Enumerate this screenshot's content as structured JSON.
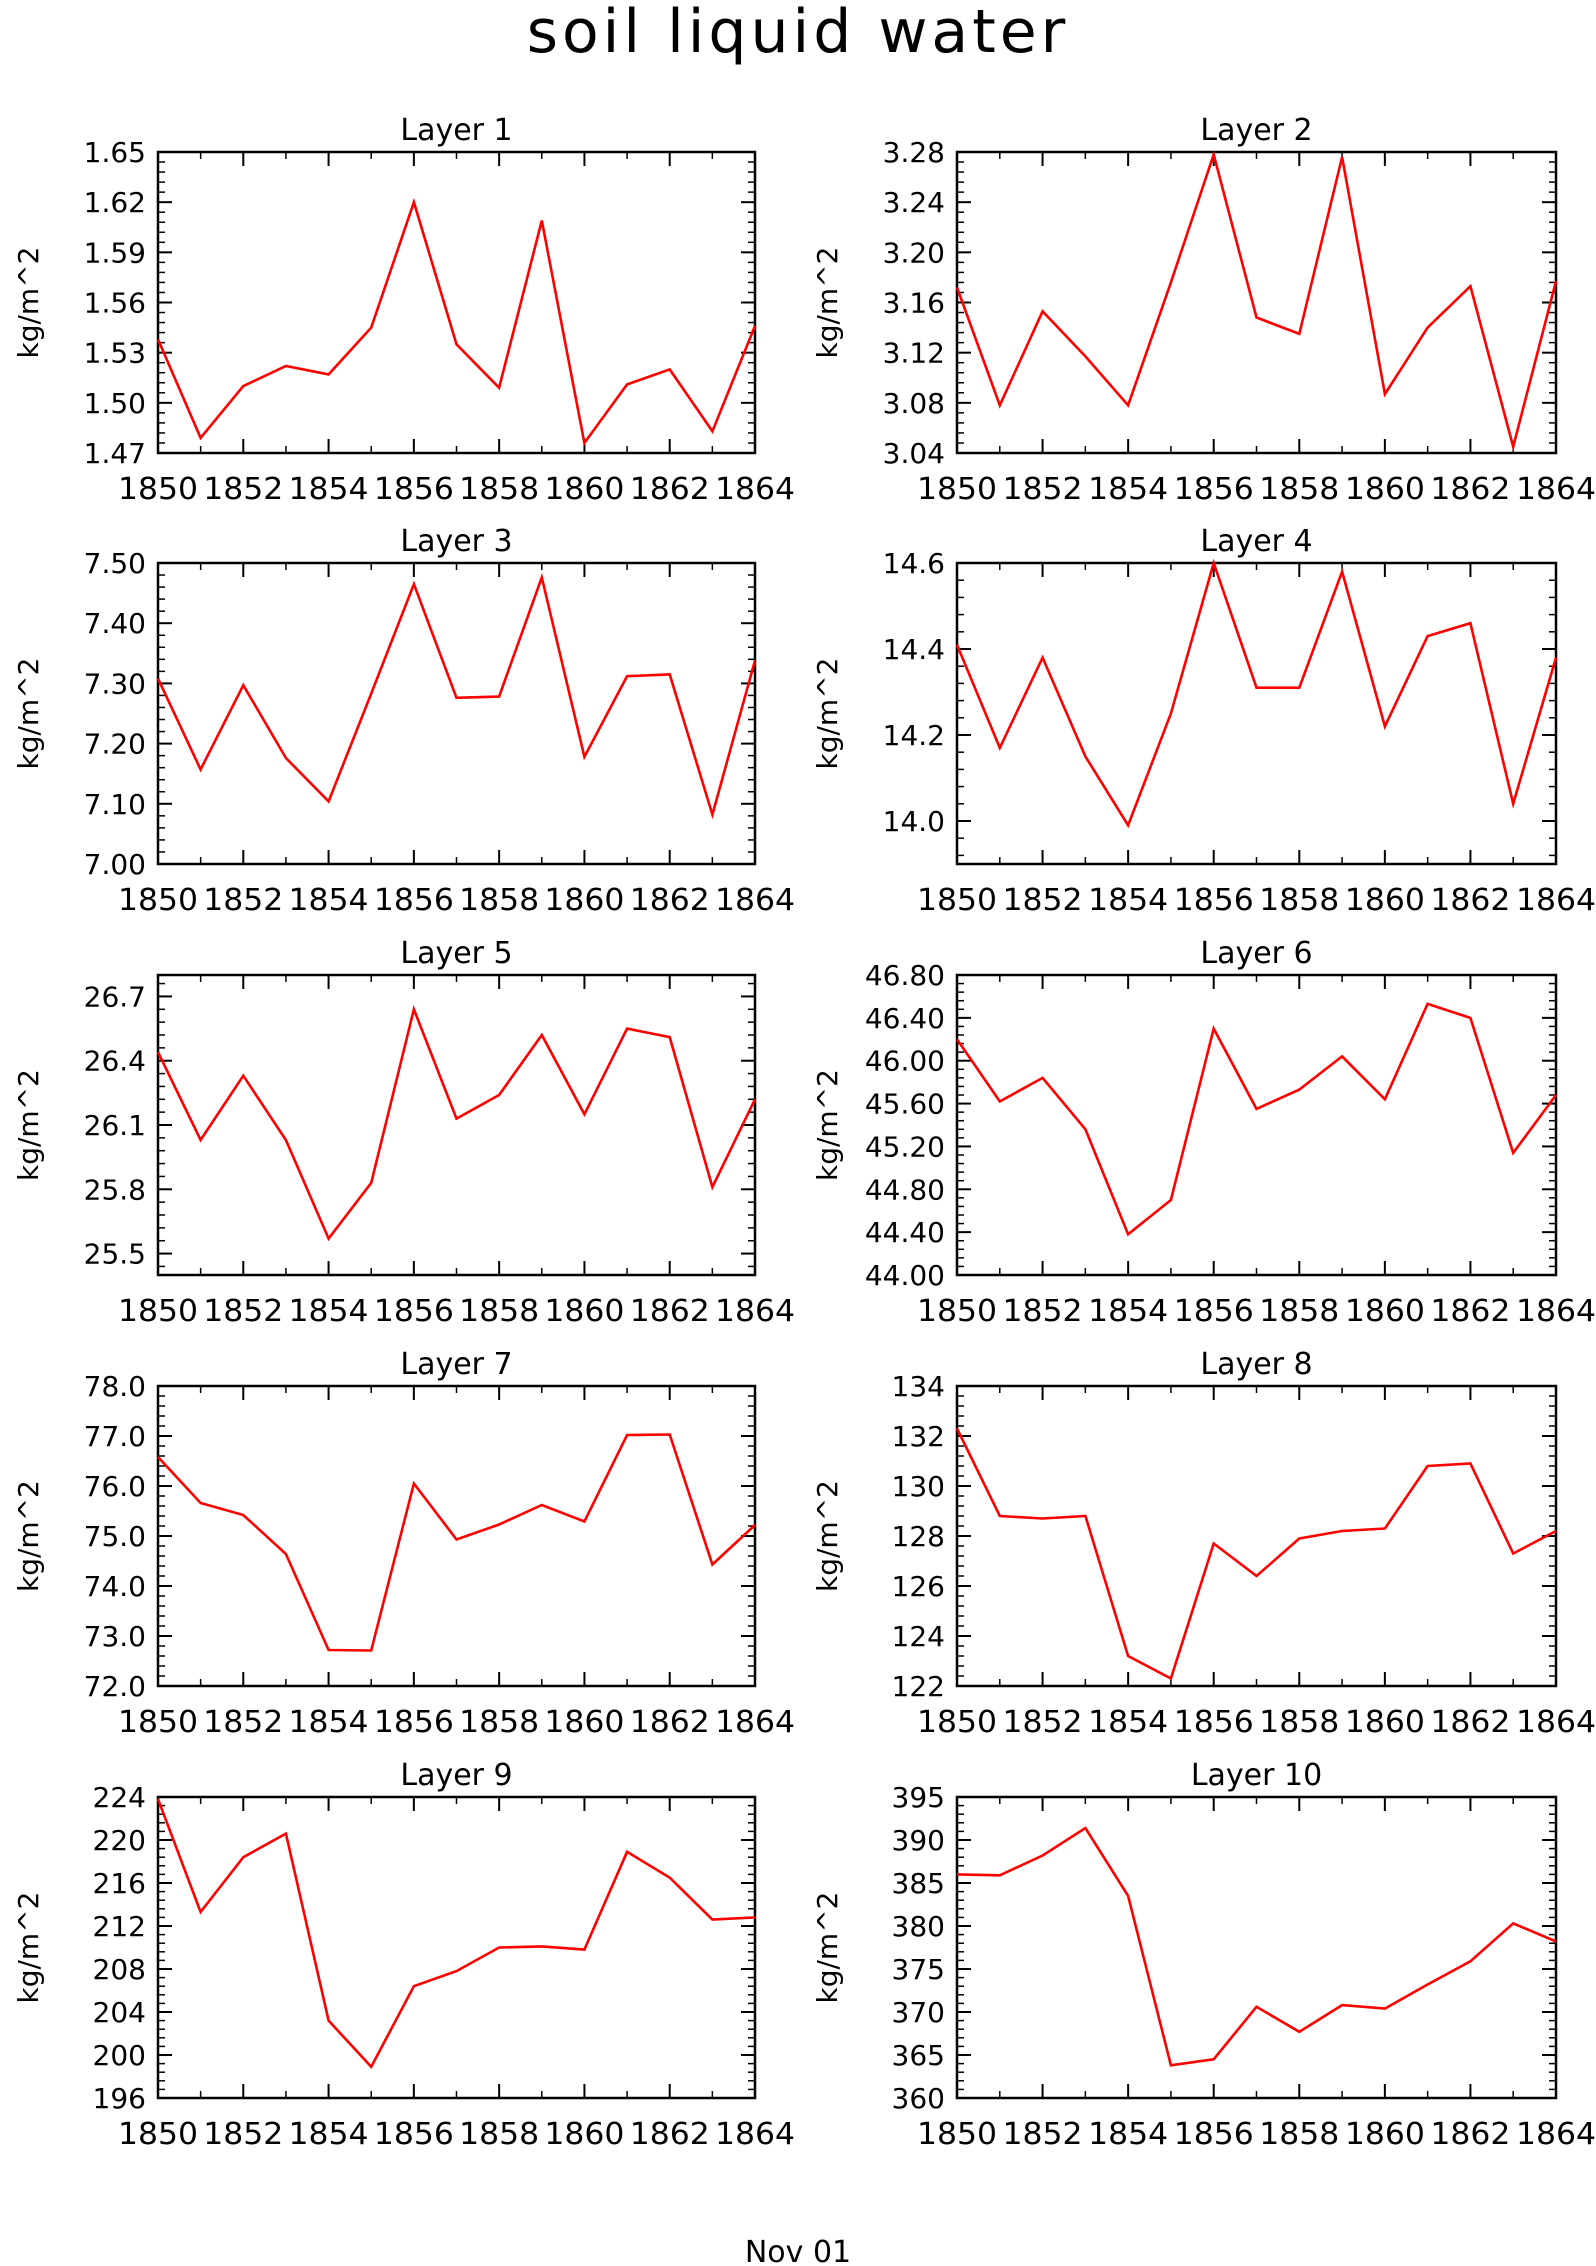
{
  "figure": {
    "title": "soil liquid water",
    "footer": "Nov 01",
    "line_color": "#ff0000"
  },
  "chart_data": [
    {
      "type": "line",
      "title": "Layer 1",
      "ylabel": "kg/m^2",
      "x": [
        1850,
        1851,
        1852,
        1853,
        1854,
        1855,
        1856,
        1857,
        1858,
        1859,
        1860,
        1861,
        1862,
        1863,
        1864
      ],
      "values": [
        1.538,
        1.479,
        1.51,
        1.522,
        1.517,
        1.545,
        1.62,
        1.535,
        1.509,
        1.609,
        1.476,
        1.511,
        1.52,
        1.483,
        1.546
      ],
      "ylim": [
        1.47,
        1.65
      ],
      "yticks": [
        "1.47",
        "1.50",
        "1.53",
        "1.56",
        "1.59",
        "1.62",
        "1.65"
      ],
      "xticks": [
        "1850",
        "1852",
        "1854",
        "1856",
        "1858",
        "1860",
        "1862",
        "1864"
      ],
      "xlim": [
        1850,
        1864
      ]
    },
    {
      "type": "line",
      "title": "Layer 2",
      "ylabel": "kg/m^2",
      "x": [
        1850,
        1851,
        1852,
        1853,
        1854,
        1855,
        1856,
        1857,
        1858,
        1859,
        1860,
        1861,
        1862,
        1863,
        1864
      ],
      "values": [
        3.172,
        3.078,
        3.153,
        3.117,
        3.078,
        3.176,
        3.278,
        3.148,
        3.135,
        3.276,
        3.087,
        3.14,
        3.173,
        3.045,
        3.177
      ],
      "ylim": [
        3.04,
        3.28
      ],
      "yticks": [
        "3.04",
        "3.08",
        "3.12",
        "3.16",
        "3.20",
        "3.24",
        "3.28"
      ],
      "xticks": [
        "1850",
        "1852",
        "1854",
        "1856",
        "1858",
        "1860",
        "1862",
        "1864"
      ],
      "xlim": [
        1850,
        1864
      ]
    },
    {
      "type": "line",
      "title": "Layer 3",
      "ylabel": "kg/m^2",
      "x": [
        1850,
        1851,
        1852,
        1853,
        1854,
        1855,
        1856,
        1857,
        1858,
        1859,
        1860,
        1861,
        1862,
        1863,
        1864
      ],
      "values": [
        7.308,
        7.157,
        7.297,
        7.176,
        7.104,
        7.283,
        7.465,
        7.276,
        7.278,
        7.476,
        7.178,
        7.312,
        7.315,
        7.082,
        7.338
      ],
      "ylim": [
        7.0,
        7.5
      ],
      "yticks": [
        "7.00",
        "7.10",
        "7.20",
        "7.30",
        "7.40",
        "7.50"
      ],
      "xticks": [
        "1850",
        "1852",
        "1854",
        "1856",
        "1858",
        "1860",
        "1862",
        "1864"
      ],
      "xlim": [
        1850,
        1864
      ]
    },
    {
      "type": "line",
      "title": "Layer 4",
      "ylabel": "kg/m^2",
      "x": [
        1850,
        1851,
        1852,
        1853,
        1854,
        1855,
        1856,
        1857,
        1858,
        1859,
        1860,
        1861,
        1862,
        1863,
        1864
      ],
      "values": [
        14.41,
        14.17,
        14.38,
        14.15,
        13.99,
        14.25,
        14.6,
        14.31,
        14.31,
        14.58,
        14.22,
        14.43,
        14.46,
        14.04,
        14.38
      ],
      "ylim": [
        13.9,
        14.6
      ],
      "yticks": [
        "14.0",
        "14.2",
        "14.4",
        "14.6"
      ],
      "xticks": [
        "1850",
        "1852",
        "1854",
        "1856",
        "1858",
        "1860",
        "1862",
        "1864"
      ],
      "xlim": [
        1850,
        1864
      ]
    },
    {
      "type": "line",
      "title": "Layer 5",
      "ylabel": "kg/m^2",
      "x": [
        1850,
        1851,
        1852,
        1853,
        1854,
        1855,
        1856,
        1857,
        1858,
        1859,
        1860,
        1861,
        1862,
        1863,
        1864
      ],
      "values": [
        26.44,
        26.03,
        26.33,
        26.03,
        25.57,
        25.83,
        26.64,
        26.13,
        26.24,
        26.52,
        26.15,
        26.55,
        26.51,
        25.81,
        26.22
      ],
      "ylim": [
        25.4,
        26.8
      ],
      "yticks": [
        "25.5",
        "25.8",
        "26.1",
        "26.4",
        "26.7"
      ],
      "xticks": [
        "1850",
        "1852",
        "1854",
        "1856",
        "1858",
        "1860",
        "1862",
        "1864"
      ],
      "xlim": [
        1850,
        1864
      ]
    },
    {
      "type": "line",
      "title": "Layer 6",
      "ylabel": "kg/m^2",
      "x": [
        1850,
        1851,
        1852,
        1853,
        1854,
        1855,
        1856,
        1857,
        1858,
        1859,
        1860,
        1861,
        1862,
        1863,
        1864
      ],
      "values": [
        46.2,
        45.62,
        45.84,
        45.36,
        44.38,
        44.7,
        46.3,
        45.55,
        45.73,
        46.04,
        45.64,
        46.53,
        46.4,
        45.14,
        45.68
      ],
      "ylim": [
        44.0,
        46.8
      ],
      "yticks": [
        "44.00",
        "44.40",
        "44.80",
        "45.20",
        "45.60",
        "46.00",
        "46.40",
        "46.80"
      ],
      "xticks": [
        "1850",
        "1852",
        "1854",
        "1856",
        "1858",
        "1860",
        "1862",
        "1864"
      ],
      "xlim": [
        1850,
        1864
      ]
    },
    {
      "type": "line",
      "title": "Layer 7",
      "ylabel": "kg/m^2",
      "x": [
        1850,
        1851,
        1852,
        1853,
        1854,
        1855,
        1856,
        1857,
        1858,
        1859,
        1860,
        1861,
        1862,
        1863,
        1864
      ],
      "values": [
        76.58,
        75.66,
        75.42,
        74.64,
        72.72,
        72.71,
        76.05,
        74.93,
        75.23,
        75.62,
        75.29,
        77.02,
        77.03,
        74.43,
        75.22
      ],
      "ylim": [
        72.0,
        78.0
      ],
      "yticks": [
        "72.0",
        "73.0",
        "74.0",
        "75.0",
        "76.0",
        "77.0",
        "78.0"
      ],
      "xticks": [
        "1850",
        "1852",
        "1854",
        "1856",
        "1858",
        "1860",
        "1862",
        "1864"
      ],
      "xlim": [
        1850,
        1864
      ]
    },
    {
      "type": "line",
      "title": "Layer 8",
      "ylabel": "kg/m^2",
      "x": [
        1850,
        1851,
        1852,
        1853,
        1854,
        1855,
        1856,
        1857,
        1858,
        1859,
        1860,
        1861,
        1862,
        1863,
        1864
      ],
      "values": [
        132.3,
        128.8,
        128.7,
        128.8,
        123.2,
        122.3,
        127.7,
        126.4,
        127.9,
        128.2,
        128.3,
        130.8,
        130.9,
        127.3,
        128.2
      ],
      "ylim": [
        122,
        134
      ],
      "yticks": [
        "122",
        "124",
        "126",
        "128",
        "130",
        "132",
        "134"
      ],
      "xticks": [
        "1850",
        "1852",
        "1854",
        "1856",
        "1858",
        "1860",
        "1862",
        "1864"
      ],
      "xlim": [
        1850,
        1864
      ]
    },
    {
      "type": "line",
      "title": "Layer 9",
      "ylabel": "kg/m^2",
      "x": [
        1850,
        1851,
        1852,
        1853,
        1854,
        1855,
        1856,
        1857,
        1858,
        1859,
        1860,
        1861,
        1862,
        1863,
        1864
      ],
      "values": [
        223.8,
        213.3,
        218.4,
        220.6,
        203.2,
        198.9,
        206.4,
        207.8,
        210.0,
        210.1,
        209.8,
        218.9,
        216.5,
        212.6,
        212.8
      ],
      "ylim": [
        196,
        224
      ],
      "yticks": [
        "196",
        "200",
        "204",
        "208",
        "212",
        "216",
        "220",
        "224"
      ],
      "xticks": [
        "1850",
        "1852",
        "1854",
        "1856",
        "1858",
        "1860",
        "1862",
        "1864"
      ],
      "xlim": [
        1850,
        1864
      ]
    },
    {
      "type": "line",
      "title": "Layer 10",
      "ylabel": "kg/m^2",
      "x": [
        1850,
        1851,
        1852,
        1853,
        1854,
        1855,
        1856,
        1857,
        1858,
        1859,
        1860,
        1861,
        1862,
        1863,
        1864
      ],
      "values": [
        386.0,
        385.9,
        388.2,
        391.4,
        383.5,
        363.8,
        364.5,
        370.6,
        367.7,
        370.8,
        370.4,
        373.2,
        375.9,
        380.3,
        378.2
      ],
      "ylim": [
        360,
        395
      ],
      "yticks": [
        "360",
        "365",
        "370",
        "375",
        "380",
        "385",
        "390",
        "395"
      ],
      "xticks": [
        "1850",
        "1852",
        "1854",
        "1856",
        "1858",
        "1860",
        "1862",
        "1864"
      ],
      "xlim": [
        1850,
        1864
      ]
    }
  ]
}
